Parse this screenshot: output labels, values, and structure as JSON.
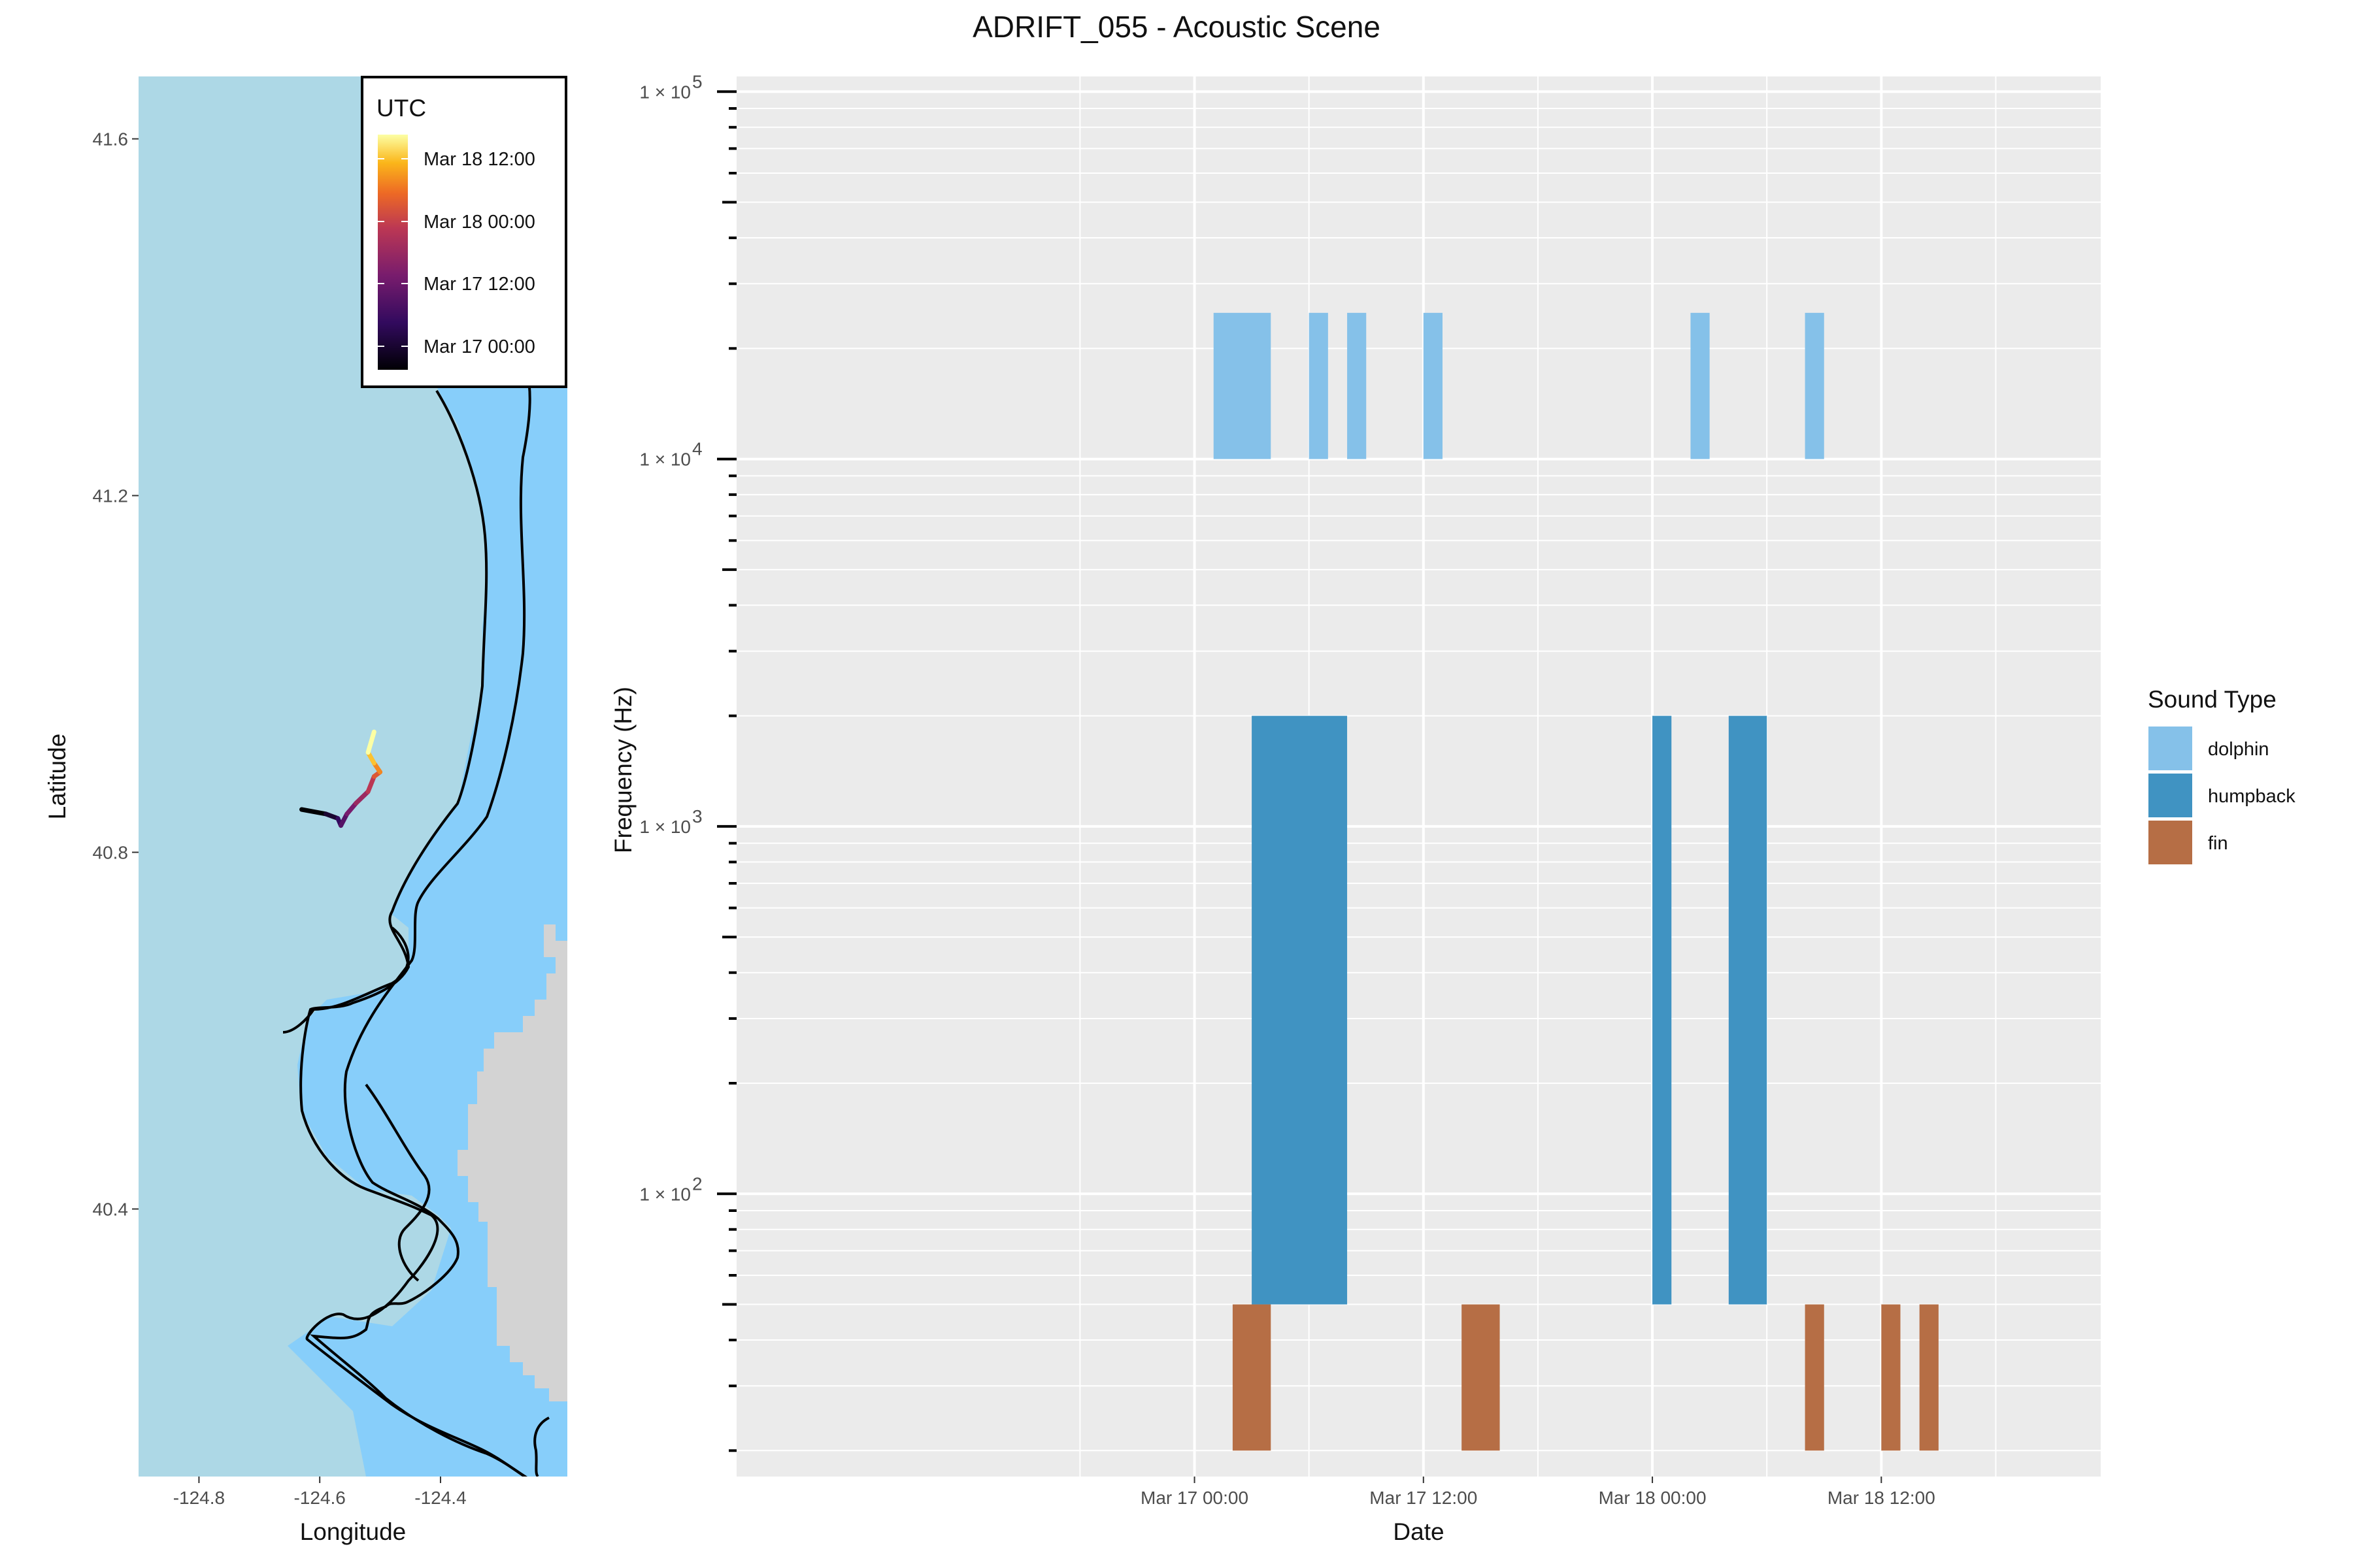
{
  "title": "ADRIFT_055 - Acoustic Scene",
  "chart_data": [
    {
      "type": "map",
      "xlabel": "Longitude",
      "ylabel": "Latitude",
      "xlim": [
        -124.9,
        -124.19
      ],
      "ylim": [
        40.1,
        41.67
      ],
      "xticks": [
        -124.8,
        -124.6,
        -124.4
      ],
      "xtick_labels": [
        "-124.8",
        "-124.6",
        "-124.4"
      ],
      "yticks": [
        40.4,
        40.8,
        41.2,
        41.6
      ],
      "ytick_labels": [
        "40.4",
        "40.8",
        "41.2",
        "41.6"
      ],
      "colors": {
        "ocean_deep": "#add8e6",
        "ocean_shelf": "#87cefa",
        "land": "#d3d3d3",
        "contour": "#000000"
      },
      "legend": {
        "title": "UTC",
        "labels": [
          "Mar 18 12:00",
          "Mar 18 00:00",
          "Mar 17 12:00",
          "Mar 17 00:00"
        ],
        "position": "top-right"
      },
      "track": {
        "colorscale": "inferno",
        "points": [
          {
            "lon": -124.63,
            "lat": 40.848,
            "t": "Mar 16 22:00"
          },
          {
            "lon": -124.59,
            "lat": 40.843,
            "t": "Mar 17 02:00"
          },
          {
            "lon": -124.57,
            "lat": 40.838,
            "t": "Mar 17 05:00"
          },
          {
            "lon": -124.565,
            "lat": 40.83,
            "t": "Mar 17 07:00"
          },
          {
            "lon": -124.555,
            "lat": 40.843,
            "t": "Mar 17 10:00"
          },
          {
            "lon": -124.54,
            "lat": 40.855,
            "t": "Mar 17 14:00"
          },
          {
            "lon": -124.52,
            "lat": 40.868,
            "t": "Mar 17 20:00"
          },
          {
            "lon": -124.51,
            "lat": 40.885,
            "t": "Mar 18 02:00"
          },
          {
            "lon": -124.5,
            "lat": 40.89,
            "t": "Mar 18 06:00"
          },
          {
            "lon": -124.51,
            "lat": 40.9,
            "t": "Mar 18 09:00"
          },
          {
            "lon": -124.52,
            "lat": 40.912,
            "t": "Mar 18 12:00"
          },
          {
            "lon": -124.51,
            "lat": 40.935,
            "t": "Mar 18 16:00"
          }
        ]
      }
    },
    {
      "type": "timeline",
      "title": "ADRIFT_055 - Acoustic Scene",
      "xlabel": "Date",
      "ylabel": "Frequency (Hz)",
      "x_axis_type": "datetime",
      "xlim": [
        "2023-03-16T00:00",
        "2023-03-18T23:30"
      ],
      "xticks": [
        "2023-03-17T00:00",
        "2023-03-17T12:00",
        "2023-03-18T00:00",
        "2023-03-18T12:00"
      ],
      "xtick_labels": [
        "Mar 17 00:00",
        "Mar 17 12:00",
        "Mar 18 00:00",
        "Mar 18 12:00"
      ],
      "y_scale": "log10",
      "ylim": [
        17,
        110000
      ],
      "yticks": [
        100,
        1000,
        10000,
        100000
      ],
      "ytick_labels": [
        "1 × 10",
        "1 × 10",
        "1 × 10",
        "1 × 10"
      ],
      "ytick_exponents": [
        "2",
        "3",
        "4",
        "5"
      ],
      "grid": true,
      "legend": {
        "title": "Sound Type",
        "position": "right",
        "items": [
          {
            "name": "dolphin",
            "color": "#85c1e9"
          },
          {
            "name": "humpback",
            "color": "#4093c2"
          },
          {
            "name": "fin",
            "color": "#b66e45"
          }
        ]
      },
      "series": [
        {
          "name": "dolphin",
          "color": "#85c1e9",
          "fmin": 10000,
          "fmax": 25000,
          "intervals": [
            [
              "2023-03-17T01:00",
              "2023-03-17T04:00"
            ],
            [
              "2023-03-17T06:00",
              "2023-03-17T07:00"
            ],
            [
              "2023-03-17T08:00",
              "2023-03-17T09:00"
            ],
            [
              "2023-03-17T12:00",
              "2023-03-17T13:00"
            ],
            [
              "2023-03-18T02:00",
              "2023-03-18T03:00"
            ],
            [
              "2023-03-18T08:00",
              "2023-03-18T09:00"
            ]
          ]
        },
        {
          "name": "humpback",
          "color": "#4093c2",
          "fmin": 50,
          "fmax": 2000,
          "intervals": [
            [
              "2023-03-17T03:00",
              "2023-03-17T08:00"
            ],
            [
              "2023-03-18T00:00",
              "2023-03-18T01:00"
            ],
            [
              "2023-03-18T04:00",
              "2023-03-18T06:00"
            ]
          ]
        },
        {
          "name": "fin",
          "color": "#b66e45",
          "fmin": 20,
          "fmax": 50,
          "intervals": [
            [
              "2023-03-17T02:00",
              "2023-03-17T04:00"
            ],
            [
              "2023-03-17T14:00",
              "2023-03-17T16:00"
            ],
            [
              "2023-03-18T08:00",
              "2023-03-18T09:00"
            ],
            [
              "2023-03-18T12:00",
              "2023-03-18T13:00"
            ],
            [
              "2023-03-18T14:00",
              "2023-03-18T15:00"
            ]
          ]
        }
      ]
    }
  ]
}
